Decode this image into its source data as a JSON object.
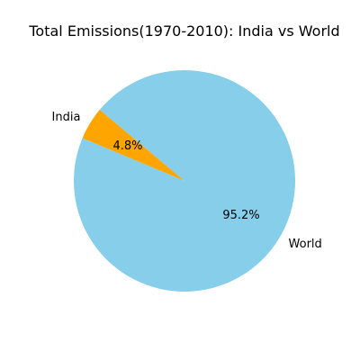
{
  "chart_data": {
    "type": "pie",
    "title": "Total Emissions(1970-2010): India vs World",
    "categories": [
      "India",
      "World"
    ],
    "values": [
      4.8,
      95.2
    ],
    "value_unit": "percent",
    "percent_labels": [
      "4.8%",
      "95.2%"
    ],
    "colors": [
      "#ffa500",
      "#87ceeb"
    ],
    "start_angle_deg": 140,
    "direction": "counterclockwise",
    "legend": "none"
  }
}
